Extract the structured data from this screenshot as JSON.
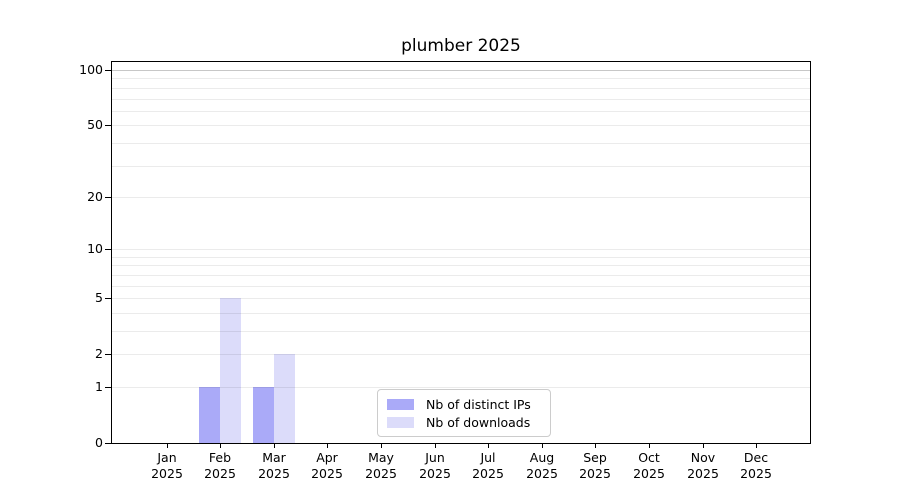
{
  "chart_data": {
    "type": "bar",
    "title": "plumber 2025",
    "categories": [
      "Jan",
      "Feb",
      "Mar",
      "Apr",
      "May",
      "Jun",
      "Jul",
      "Aug",
      "Sep",
      "Oct",
      "Nov",
      "Dec"
    ],
    "x_tick_second_line": "2025",
    "series": [
      {
        "name": "Nb of distinct IPs",
        "color": "#aaaaf8",
        "values": [
          0,
          1,
          1,
          0,
          0,
          0,
          0,
          0,
          0,
          0,
          0,
          0
        ]
      },
      {
        "name": "Nb of downloads",
        "color": "#dcdcfa",
        "values": [
          0,
          5,
          2,
          0,
          0,
          0,
          0,
          0,
          0,
          0,
          0,
          0
        ]
      }
    ],
    "yscale": "log1p",
    "ylim": [
      0,
      100
    ],
    "y_ticks": [
      0,
      1,
      2,
      5,
      10,
      20,
      50,
      100
    ],
    "y_minor_grid": [
      1,
      2,
      3,
      4,
      5,
      6,
      7,
      8,
      9,
      10,
      20,
      30,
      40,
      50,
      60,
      70,
      80,
      90
    ],
    "y_major_grid": [
      100
    ],
    "grid": "horizontal",
    "legend_position": "lower-center",
    "background_color": "#ffffff",
    "axis_color": "#000000"
  }
}
